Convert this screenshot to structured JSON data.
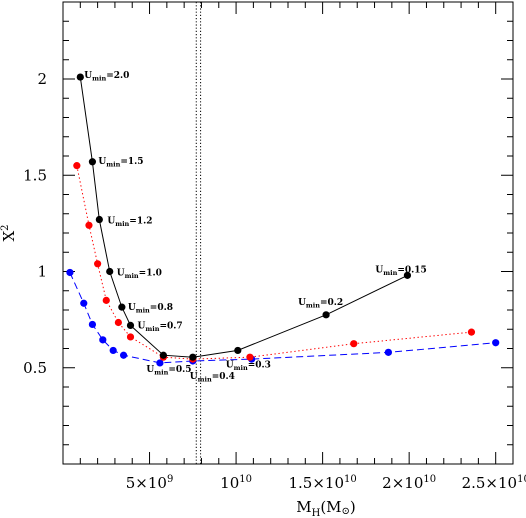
{
  "chart_data": {
    "type": "line",
    "title": "",
    "xlabel": "M",
    "xlabel_sub": "H",
    "xlabel_paren": "(M",
    "xlabel_sun": "⊙",
    "xlabel_close": ")",
    "ylabel": "X",
    "ylabel_sup": "2",
    "xlim": [
      0,
      26000000000
    ],
    "ylim": [
      0,
      2.4
    ],
    "x_ticks": [
      {
        "value": 5000000000,
        "mant": "5×10",
        "exp": "9"
      },
      {
        "value": 10000000000,
        "mant": "10",
        "exp": "10"
      },
      {
        "value": 15000000000,
        "mant": "1.5×10",
        "exp": "10"
      },
      {
        "value": 20000000000,
        "mant": "2×10",
        "exp": "10"
      },
      {
        "value": 25000000000,
        "mant": "2.5×10",
        "exp": "10"
      }
    ],
    "y_ticks": [
      {
        "value": 0.5,
        "label": "0.5"
      },
      {
        "value": 1,
        "label": "1"
      },
      {
        "value": 1.5,
        "label": "1.5"
      },
      {
        "value": 2,
        "label": "2"
      }
    ],
    "vlines": [
      7700000000,
      7950000000
    ],
    "series": [
      {
        "color": "#000000",
        "dash": "",
        "marker_r": 3.6,
        "points": [
          {
            "x": 1000000000,
            "y": 2.01
          },
          {
            "x": 1700000000,
            "y": 1.57
          },
          {
            "x": 2100000000,
            "y": 1.27
          },
          {
            "x": 2700000000,
            "y": 1.0
          },
          {
            "x": 3400000000,
            "y": 0.815
          },
          {
            "x": 3900000000,
            "y": 0.72
          },
          {
            "x": 5800000000,
            "y": 0.565
          },
          {
            "x": 7500000000,
            "y": 0.555
          },
          {
            "x": 10100000000,
            "y": 0.59
          },
          {
            "x": 15200000000,
            "y": 0.775
          },
          {
            "x": 19900000000,
            "y": 0.98
          }
        ]
      },
      {
        "color": "#ff0000",
        "dash": "1.4,2.6",
        "marker_r": 3.6,
        "points": [
          {
            "x": 800000000,
            "y": 1.55
          },
          {
            "x": 1500000000,
            "y": 1.24
          },
          {
            "x": 2000000000,
            "y": 1.04
          },
          {
            "x": 2500000000,
            "y": 0.85
          },
          {
            "x": 3200000000,
            "y": 0.735
          },
          {
            "x": 3900000000,
            "y": 0.66
          },
          {
            "x": 5800000000,
            "y": 0.555
          },
          {
            "x": 7500000000,
            "y": 0.545
          },
          {
            "x": 10800000000,
            "y": 0.555
          },
          {
            "x": 16800000000,
            "y": 0.625
          },
          {
            "x": 23600000000,
            "y": 0.685
          }
        ]
      },
      {
        "color": "#0000ff",
        "dash": "7,4",
        "marker_r": 3.6,
        "points": [
          {
            "x": 400000000,
            "y": 0.995
          },
          {
            "x": 1200000000,
            "y": 0.835
          },
          {
            "x": 1700000000,
            "y": 0.725
          },
          {
            "x": 2300000000,
            "y": 0.645
          },
          {
            "x": 2900000000,
            "y": 0.59
          },
          {
            "x": 3500000000,
            "y": 0.565
          },
          {
            "x": 5600000000,
            "y": 0.525
          },
          {
            "x": 7500000000,
            "y": 0.535
          },
          {
            "x": 10900000000,
            "y": 0.545
          },
          {
            "x": 18800000000,
            "y": 0.58
          },
          {
            "x": 25000000000,
            "y": 0.63
          }
        ]
      }
    ],
    "annotations": [
      {
        "main": "U",
        "sub": "min",
        "value": "=2.0",
        "x": 1000000000,
        "y": 2.01
      },
      {
        "main": "U",
        "sub": "min",
        "value": "=1.5",
        "x": 1700000000,
        "y": 1.57
      },
      {
        "main": "U",
        "sub": "min",
        "value": "=1.2",
        "x": 2100000000,
        "y": 1.27
      },
      {
        "main": "U",
        "sub": "min",
        "value": "=1.0",
        "x": 2700000000,
        "y": 1.0
      },
      {
        "main": "U",
        "sub": "min",
        "value": "=0.8",
        "x": 3400000000,
        "y": 0.815
      },
      {
        "main": "U",
        "sub": "min",
        "value": "=0.7",
        "x": 3900000000,
        "y": 0.72
      },
      {
        "main": "U",
        "sub": "min",
        "value": "=0.5",
        "x": 5800000000,
        "y": 0.565
      },
      {
        "main": "U",
        "sub": "min",
        "value": "=0.4",
        "x": 7500000000,
        "y": 0.555
      },
      {
        "main": "U",
        "sub": "min",
        "value": "=0.3",
        "x": 10100000000,
        "y": 0.59
      },
      {
        "main": "U",
        "sub": "min",
        "value": "=0.2",
        "x": 15200000000,
        "y": 0.775
      },
      {
        "main": "U",
        "sub": "min",
        "value": "=0.15",
        "x": 19900000000,
        "y": 0.98
      }
    ]
  }
}
